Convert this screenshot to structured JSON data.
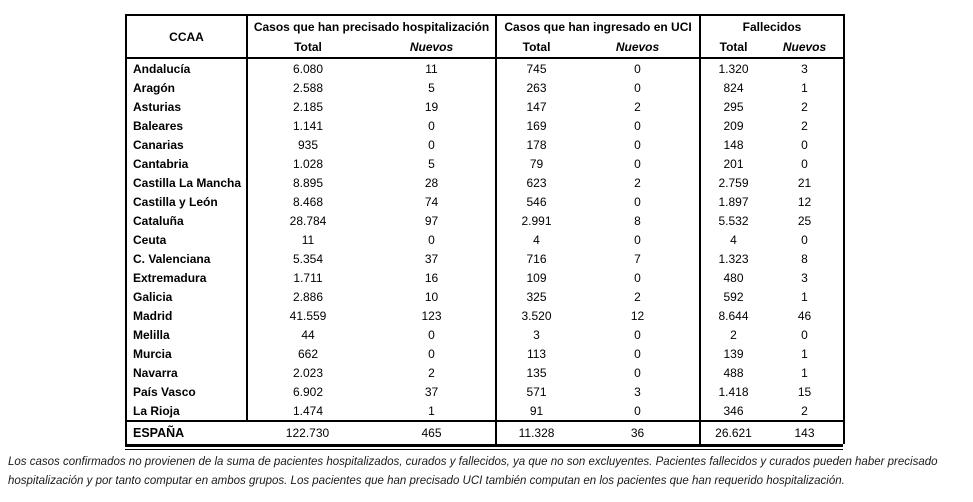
{
  "table": {
    "corner_header": "CCAA",
    "groups": [
      {
        "label": "Casos que han precisado hospitalización",
        "sub": [
          "Total",
          "Nuevos"
        ]
      },
      {
        "label": "Casos que han ingresado en UCI",
        "sub": [
          "Total",
          "Nuevos"
        ]
      },
      {
        "label": "Fallecidos",
        "sub": [
          "Total",
          "Nuevos"
        ]
      }
    ],
    "rows": [
      {
        "ccaa": "Andalucía",
        "values": [
          "6.080",
          "11",
          "745",
          "0",
          "1.320",
          "3"
        ]
      },
      {
        "ccaa": "Aragón",
        "values": [
          "2.588",
          "5",
          "263",
          "0",
          "824",
          "1"
        ]
      },
      {
        "ccaa": "Asturias",
        "values": [
          "2.185",
          "19",
          "147",
          "2",
          "295",
          "2"
        ]
      },
      {
        "ccaa": "Baleares",
        "values": [
          "1.141",
          "0",
          "169",
          "0",
          "209",
          "2"
        ]
      },
      {
        "ccaa": "Canarias",
        "values": [
          "935",
          "0",
          "178",
          "0",
          "148",
          "0"
        ]
      },
      {
        "ccaa": "Cantabria",
        "values": [
          "1.028",
          "5",
          "79",
          "0",
          "201",
          "0"
        ]
      },
      {
        "ccaa": "Castilla La Mancha",
        "values": [
          "8.895",
          "28",
          "623",
          "2",
          "2.759",
          "21"
        ]
      },
      {
        "ccaa": "Castilla y León",
        "values": [
          "8.468",
          "74",
          "546",
          "0",
          "1.897",
          "12"
        ]
      },
      {
        "ccaa": "Cataluña",
        "values": [
          "28.784",
          "97",
          "2.991",
          "8",
          "5.532",
          "25"
        ]
      },
      {
        "ccaa": "Ceuta",
        "values": [
          "11",
          "0",
          "4",
          "0",
          "4",
          "0"
        ]
      },
      {
        "ccaa": "C. Valenciana",
        "values": [
          "5.354",
          "37",
          "716",
          "7",
          "1.323",
          "8"
        ]
      },
      {
        "ccaa": "Extremadura",
        "values": [
          "1.711",
          "16",
          "109",
          "0",
          "480",
          "3"
        ]
      },
      {
        "ccaa": "Galicia",
        "values": [
          "2.886",
          "10",
          "325",
          "2",
          "592",
          "1"
        ]
      },
      {
        "ccaa": "Madrid",
        "values": [
          "41.559",
          "123",
          "3.520",
          "12",
          "8.644",
          "46"
        ]
      },
      {
        "ccaa": "Melilla",
        "values": [
          "44",
          "0",
          "3",
          "0",
          "2",
          "0"
        ]
      },
      {
        "ccaa": "Murcia",
        "values": [
          "662",
          "0",
          "113",
          "0",
          "139",
          "1"
        ]
      },
      {
        "ccaa": "Navarra",
        "values": [
          "2.023",
          "2",
          "135",
          "0",
          "488",
          "1"
        ]
      },
      {
        "ccaa": "País Vasco",
        "values": [
          "6.902",
          "37",
          "571",
          "3",
          "1.418",
          "15"
        ]
      },
      {
        "ccaa": "La Rioja",
        "values": [
          "1.474",
          "1",
          "91",
          "0",
          "346",
          "2"
        ]
      }
    ],
    "total_row": {
      "ccaa": "ESPAÑA",
      "values": [
        "122.730",
        "465",
        "11.328",
        "36",
        "26.621",
        "143"
      ]
    }
  },
  "footnote": "Los casos confirmados no provienen de la suma de pacientes hospitalizados, curados y fallecidos, ya que no son excluyentes. Pacientes fallecidos y curados pueden haber precisado hospitalización y por tanto computar en ambos grupos. Los pacientes que han precisado UCI también computan en los pacientes que han requerido hospitalización."
}
